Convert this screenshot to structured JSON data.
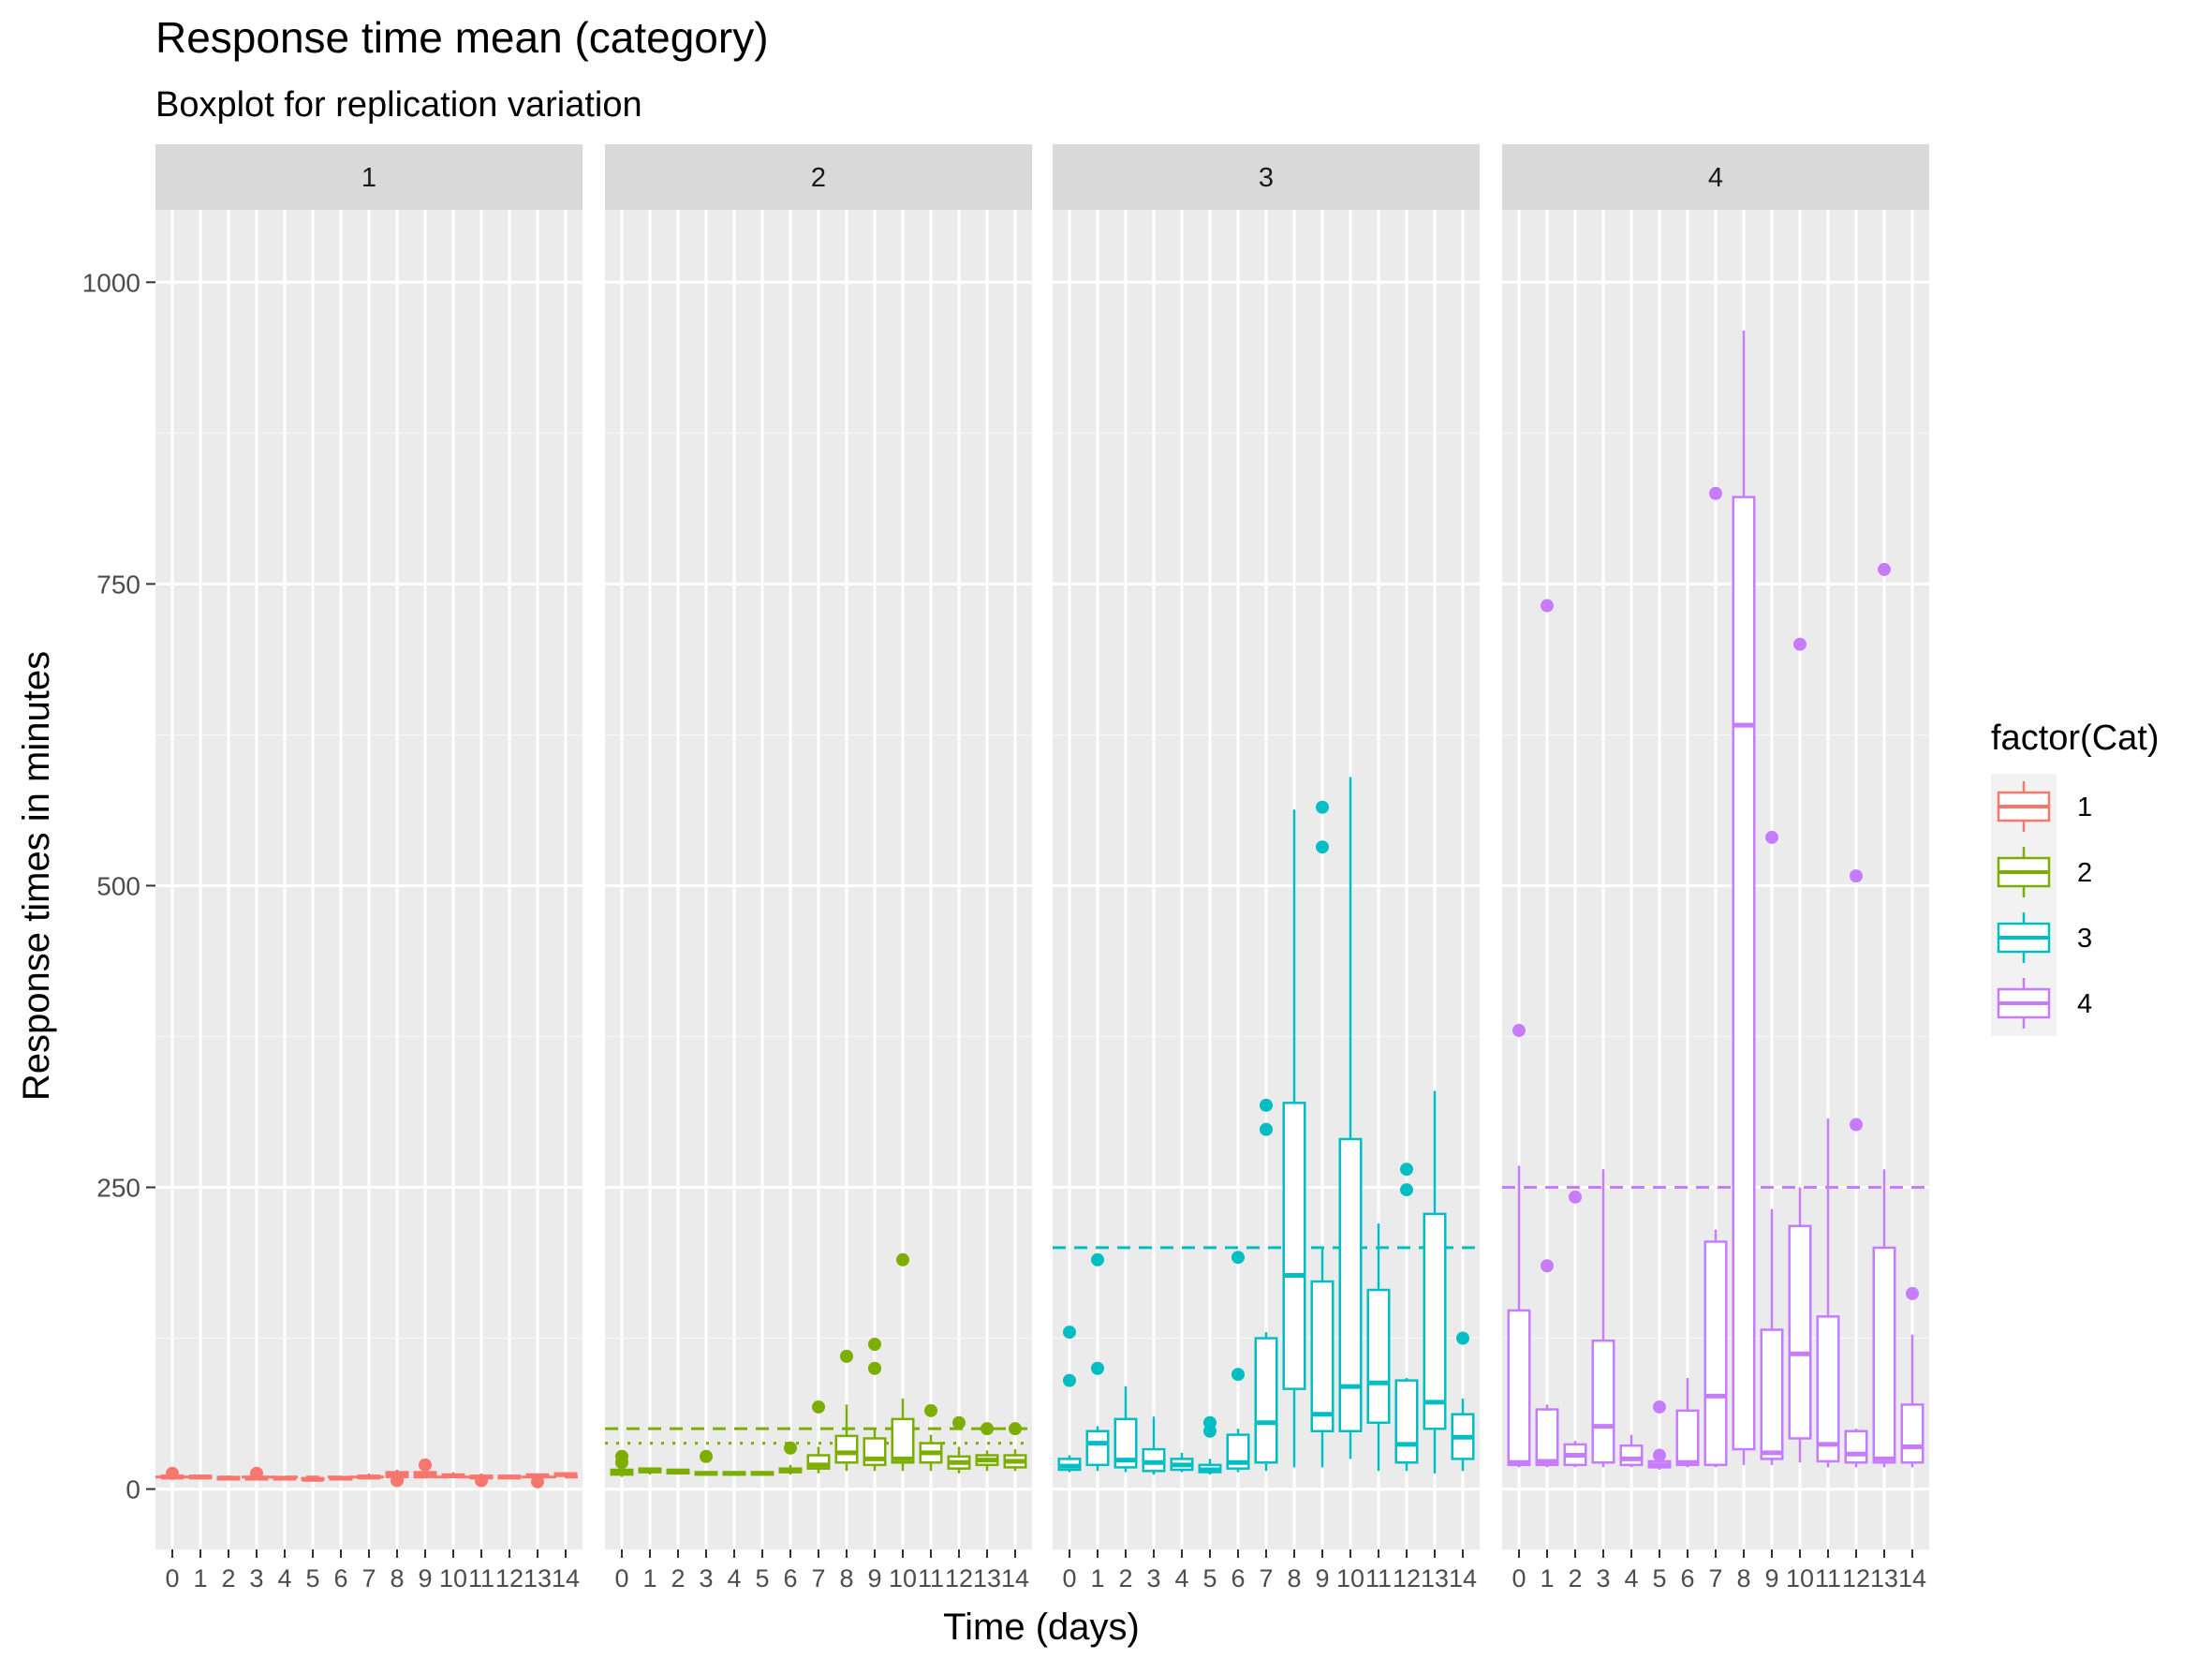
{
  "chart_data": {
    "type": "boxplot",
    "title": "Response time mean (category)",
    "subtitle": "Boxplot for replication variation",
    "xlabel": "Time (days)",
    "ylabel": "Response times in minutes",
    "ylim": [
      -50,
      1060
    ],
    "yticks": [
      0,
      250,
      500,
      750,
      1000
    ],
    "categories": [
      "0",
      "1",
      "2",
      "3",
      "4",
      "5",
      "6",
      "7",
      "8",
      "9",
      "10",
      "11",
      "12",
      "13",
      "14"
    ],
    "legend": {
      "title": "factor(Cat)",
      "position": "right",
      "entries": [
        "1",
        "2",
        "3",
        "4"
      ]
    },
    "colors": {
      "1": "#F8766D",
      "2": "#7CAE00",
      "3": "#00BFC4",
      "4": "#C77CFF"
    },
    "grid": true,
    "panels": [
      {
        "label": "1",
        "series_color": "#F8766D",
        "reference_lines": [
          {
            "y": 10,
            "style": "dashed"
          }
        ],
        "boxes": [
          {
            "x": "0",
            "min": 8,
            "q1": 9,
            "median": 10,
            "q3": 11,
            "max": 12,
            "outliers": [
              13
            ]
          },
          {
            "x": "1",
            "min": 8,
            "q1": 9,
            "median": 10,
            "q3": 11,
            "max": 12,
            "outliers": []
          },
          {
            "x": "2",
            "min": 7,
            "q1": 8,
            "median": 9,
            "q3": 10,
            "max": 11,
            "outliers": []
          },
          {
            "x": "3",
            "min": 7,
            "q1": 8,
            "median": 9,
            "q3": 10,
            "max": 11,
            "outliers": [
              13
            ]
          },
          {
            "x": "4",
            "min": 7,
            "q1": 8,
            "median": 9,
            "q3": 10,
            "max": 11,
            "outliers": []
          },
          {
            "x": "5",
            "min": 7,
            "q1": 8,
            "median": 8,
            "q3": 9,
            "max": 10,
            "outliers": []
          },
          {
            "x": "6",
            "min": 7,
            "q1": 8,
            "median": 9,
            "q3": 10,
            "max": 11,
            "outliers": []
          },
          {
            "x": "7",
            "min": 8,
            "q1": 9,
            "median": 10,
            "q3": 11,
            "max": 13,
            "outliers": []
          },
          {
            "x": "8",
            "min": 9,
            "q1": 10,
            "median": 12,
            "q3": 14,
            "max": 16,
            "outliers": [
              7
            ]
          },
          {
            "x": "9",
            "min": 9,
            "q1": 10,
            "median": 12,
            "q3": 14,
            "max": 16,
            "outliers": [
              20
            ]
          },
          {
            "x": "10",
            "min": 9,
            "q1": 10,
            "median": 11,
            "q3": 12,
            "max": 14,
            "outliers": []
          },
          {
            "x": "11",
            "min": 8,
            "q1": 9,
            "median": 10,
            "q3": 11,
            "max": 13,
            "outliers": [
              7
            ]
          },
          {
            "x": "12",
            "min": 8,
            "q1": 9,
            "median": 10,
            "q3": 11,
            "max": 12,
            "outliers": []
          },
          {
            "x": "13",
            "min": 9,
            "q1": 10,
            "median": 11,
            "q3": 12,
            "max": 13,
            "outliers": [
              6
            ]
          },
          {
            "x": "14",
            "min": 10,
            "q1": 11,
            "median": 12,
            "q3": 13,
            "max": 14,
            "outliers": []
          }
        ]
      },
      {
        "label": "2",
        "series_color": "#7CAE00",
        "reference_lines": [
          {
            "y": 50,
            "style": "dashed"
          },
          {
            "y": 38,
            "style": "dotted"
          }
        ],
        "boxes": [
          {
            "x": "0",
            "min": 10,
            "q1": 12,
            "median": 14,
            "q3": 16,
            "max": 18,
            "outliers": [
              22,
              27
            ]
          },
          {
            "x": "1",
            "min": 12,
            "q1": 14,
            "median": 15,
            "q3": 17,
            "max": 18,
            "outliers": []
          },
          {
            "x": "2",
            "min": 12,
            "q1": 13,
            "median": 14,
            "q3": 16,
            "max": 17,
            "outliers": []
          },
          {
            "x": "3",
            "min": 11,
            "q1": 12,
            "median": 13,
            "q3": 14,
            "max": 15,
            "outliers": [
              27
            ]
          },
          {
            "x": "4",
            "min": 11,
            "q1": 12,
            "median": 13,
            "q3": 14,
            "max": 15,
            "outliers": []
          },
          {
            "x": "5",
            "min": 11,
            "q1": 12,
            "median": 13,
            "q3": 14,
            "max": 15,
            "outliers": []
          },
          {
            "x": "6",
            "min": 12,
            "q1": 14,
            "median": 15,
            "q3": 17,
            "max": 20,
            "outliers": [
              34
            ]
          },
          {
            "x": "7",
            "min": 13,
            "q1": 17,
            "median": 20,
            "q3": 28,
            "max": 35,
            "outliers": [
              68
            ]
          },
          {
            "x": "8",
            "min": 15,
            "q1": 22,
            "median": 30,
            "q3": 44,
            "max": 70,
            "outliers": [
              110
            ]
          },
          {
            "x": "9",
            "min": 15,
            "q1": 20,
            "median": 25,
            "q3": 42,
            "max": 50,
            "outliers": [
              100,
              120
            ]
          },
          {
            "x": "10",
            "min": 15,
            "q1": 22,
            "median": 25,
            "q3": 58,
            "max": 75,
            "outliers": [
              190
            ]
          },
          {
            "x": "11",
            "min": 15,
            "q1": 22,
            "median": 30,
            "q3": 38,
            "max": 45,
            "outliers": [
              65
            ]
          },
          {
            "x": "12",
            "min": 13,
            "q1": 17,
            "median": 22,
            "q3": 27,
            "max": 35,
            "outliers": [
              55
            ]
          },
          {
            "x": "13",
            "min": 15,
            "q1": 20,
            "median": 24,
            "q3": 28,
            "max": 32,
            "outliers": [
              50
            ]
          },
          {
            "x": "14",
            "min": 15,
            "q1": 18,
            "median": 23,
            "q3": 28,
            "max": 33,
            "outliers": [
              50
            ]
          }
        ]
      },
      {
        "label": "3",
        "series_color": "#00BFC4",
        "reference_lines": [
          {
            "y": 200,
            "style": "dashed"
          }
        ],
        "boxes": [
          {
            "x": "0",
            "min": 14,
            "q1": 16,
            "median": 19,
            "q3": 25,
            "max": 28,
            "outliers": [
              90,
              130
            ]
          },
          {
            "x": "1",
            "min": 15,
            "q1": 20,
            "median": 38,
            "q3": 48,
            "max": 52,
            "outliers": [
              100,
              190
            ]
          },
          {
            "x": "2",
            "min": 14,
            "q1": 18,
            "median": 24,
            "q3": 58,
            "max": 85,
            "outliers": []
          },
          {
            "x": "3",
            "min": 12,
            "q1": 15,
            "median": 22,
            "q3": 33,
            "max": 60,
            "outliers": []
          },
          {
            "x": "4",
            "min": 14,
            "q1": 16,
            "median": 20,
            "q3": 25,
            "max": 30,
            "outliers": []
          },
          {
            "x": "5",
            "min": 12,
            "q1": 14,
            "median": 16,
            "q3": 20,
            "max": 25,
            "outliers": [
              48,
              55
            ]
          },
          {
            "x": "6",
            "min": 14,
            "q1": 17,
            "median": 22,
            "q3": 45,
            "max": 50,
            "outliers": [
              95,
              192
            ]
          },
          {
            "x": "7",
            "min": 15,
            "q1": 22,
            "median": 55,
            "q3": 125,
            "max": 130,
            "outliers": [
              298,
              318
            ]
          },
          {
            "x": "8",
            "min": 18,
            "q1": 83,
            "median": 177,
            "q3": 320,
            "max": 563,
            "outliers": []
          },
          {
            "x": "9",
            "min": 18,
            "q1": 48,
            "median": 62,
            "q3": 172,
            "max": 200,
            "outliers": [
              532,
              565
            ]
          },
          {
            "x": "10",
            "min": 25,
            "q1": 48,
            "median": 85,
            "q3": 290,
            "max": 590,
            "outliers": []
          },
          {
            "x": "11",
            "min": 15,
            "q1": 55,
            "median": 88,
            "q3": 165,
            "max": 220,
            "outliers": []
          },
          {
            "x": "12",
            "min": 15,
            "q1": 22,
            "median": 37,
            "q3": 90,
            "max": 92,
            "outliers": [
              248,
              265
            ]
          },
          {
            "x": "13",
            "min": 13,
            "q1": 50,
            "median": 72,
            "q3": 228,
            "max": 330,
            "outliers": []
          },
          {
            "x": "14",
            "min": 15,
            "q1": 25,
            "median": 43,
            "q3": 62,
            "max": 75,
            "outliers": [
              125
            ]
          }
        ]
      },
      {
        "label": "4",
        "series_color": "#C77CFF",
        "reference_lines": [
          {
            "y": 250,
            "style": "dashed"
          }
        ],
        "boxes": [
          {
            "x": "0",
            "min": 18,
            "q1": 20,
            "median": 22,
            "q3": 148,
            "max": 268,
            "outliers": [
              380
            ]
          },
          {
            "x": "1",
            "min": 18,
            "q1": 20,
            "median": 23,
            "q3": 66,
            "max": 70,
            "outliers": [
              185,
              732
            ]
          },
          {
            "x": "2",
            "min": 18,
            "q1": 20,
            "median": 28,
            "q3": 37,
            "max": 40,
            "outliers": [
              242
            ]
          },
          {
            "x": "3",
            "min": 18,
            "q1": 22,
            "median": 52,
            "q3": 123,
            "max": 265,
            "outliers": []
          },
          {
            "x": "4",
            "min": 18,
            "q1": 20,
            "median": 25,
            "q3": 36,
            "max": 45,
            "outliers": []
          },
          {
            "x": "5",
            "min": 16,
            "q1": 18,
            "median": 20,
            "q3": 23,
            "max": 27,
            "outliers": [
              28,
              68
            ]
          },
          {
            "x": "6",
            "min": 18,
            "q1": 20,
            "median": 22,
            "q3": 65,
            "max": 92,
            "outliers": []
          },
          {
            "x": "7",
            "min": 18,
            "q1": 20,
            "median": 77,
            "q3": 205,
            "max": 215,
            "outliers": [
              825
            ]
          },
          {
            "x": "8",
            "min": 20,
            "q1": 33,
            "median": 633,
            "q3": 822,
            "max": 960,
            "outliers": []
          },
          {
            "x": "9",
            "min": 20,
            "q1": 25,
            "median": 30,
            "q3": 132,
            "max": 232,
            "outliers": [
              540
            ]
          },
          {
            "x": "10",
            "min": 22,
            "q1": 42,
            "median": 112,
            "q3": 218,
            "max": 250,
            "outliers": [
              700
            ]
          },
          {
            "x": "11",
            "min": 18,
            "q1": 23,
            "median": 37,
            "q3": 143,
            "max": 307,
            "outliers": []
          },
          {
            "x": "12",
            "min": 18,
            "q1": 22,
            "median": 29,
            "q3": 48,
            "max": 50,
            "outliers": [
              302,
              508
            ]
          },
          {
            "x": "13",
            "min": 18,
            "q1": 22,
            "median": 25,
            "q3": 200,
            "max": 265,
            "outliers": [
              762
            ]
          },
          {
            "x": "14",
            "min": 18,
            "q1": 22,
            "median": 35,
            "q3": 70,
            "max": 128,
            "outliers": [
              162
            ]
          }
        ]
      }
    ]
  }
}
